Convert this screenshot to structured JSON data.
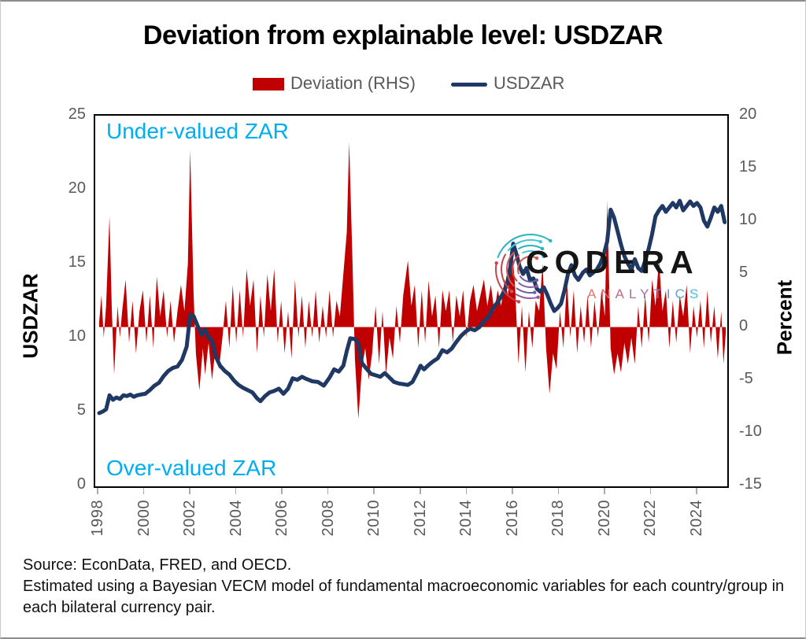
{
  "title": "Deviation from explainable level: USDZAR",
  "legend": [
    {
      "label": "Deviation (RHS)",
      "swatch": "bar",
      "color": "#C00000"
    },
    {
      "label": "USDZAR",
      "swatch": "line",
      "color": "#1F3864"
    }
  ],
  "annotations": {
    "top": "Under-valued ZAR",
    "bottom": "Over-valued ZAR",
    "color": "#00AEEF"
  },
  "logo": {
    "wordmark": "CODERA",
    "subtitle": "ANALYTICS",
    "subtitle_letter_colors": [
      "#E2726E",
      "#D76C77",
      "#C46A86",
      "#AF6C99",
      "#9771AE",
      "#7F7BBE",
      "#6B8FCB",
      "#5BA6D8",
      "#4FBCE3"
    ]
  },
  "footer": {
    "line1": "Source: EconData,  FRED, and OECD.",
    "line2": "Estimated using a Bayesian VECM model of fundamental macroeconomic variables for each country/group in",
    "line3": "each bilateral currency pair."
  },
  "chart_data": {
    "type": "line",
    "title": "Deviation from explainable level: USDZAR",
    "grid": false,
    "legend_position": "top",
    "x_axis": {
      "min": 1997.83,
      "max": 2025.23,
      "ticks": [
        1998,
        2000,
        2002,
        2004,
        2006,
        2008,
        2010,
        2012,
        2014,
        2016,
        2018,
        2020,
        2022,
        2024
      ]
    },
    "y_left": {
      "label": "USDZAR",
      "min": 0,
      "max": 25,
      "ticks": [
        25,
        20,
        15,
        10,
        5,
        0
      ]
    },
    "y_right": {
      "label": "Percent",
      "min": -15,
      "max": 20,
      "ticks": [
        20,
        15,
        10,
        5,
        0,
        -5,
        -10,
        -15
      ]
    },
    "series": [
      {
        "name": "Deviation (RHS)",
        "type": "area",
        "axis": "right",
        "color": "#C00000",
        "x": [
          1998.0,
          1998.1,
          1998.2,
          1998.3,
          1998.45,
          1998.55,
          1998.65,
          1998.8,
          1998.9,
          1999.0,
          1999.15,
          1999.3,
          1999.45,
          1999.6,
          1999.75,
          1999.9,
          2000.05,
          2000.2,
          2000.35,
          2000.5,
          2000.65,
          2000.8,
          2000.95,
          2001.1,
          2001.25,
          2001.4,
          2001.55,
          2001.7,
          2001.85,
          2001.95,
          2002.1,
          2002.2,
          2002.35,
          2002.5,
          2002.6,
          2002.75,
          2002.9,
          2003.05,
          2003.2,
          2003.35,
          2003.5,
          2003.65,
          2003.8,
          2003.95,
          2004.1,
          2004.25,
          2004.4,
          2004.55,
          2004.7,
          2004.85,
          2005.0,
          2005.15,
          2005.3,
          2005.45,
          2005.6,
          2005.75,
          2005.9,
          2006.05,
          2006.2,
          2006.35,
          2006.5,
          2006.65,
          2006.8,
          2006.95,
          2007.1,
          2007.25,
          2007.4,
          2007.55,
          2007.7,
          2007.85,
          2008.0,
          2008.15,
          2008.3,
          2008.45,
          2008.6,
          2008.75,
          2008.85,
          2009.0,
          2009.1,
          2009.25,
          2009.4,
          2009.55,
          2009.7,
          2009.85,
          2010.0,
          2010.15,
          2010.3,
          2010.45,
          2010.6,
          2010.75,
          2010.9,
          2011.05,
          2011.2,
          2011.4,
          2011.55,
          2011.7,
          2011.85,
          2012.0,
          2012.15,
          2012.3,
          2012.45,
          2012.6,
          2012.75,
          2012.9,
          2013.05,
          2013.2,
          2013.35,
          2013.5,
          2013.65,
          2013.8,
          2013.95,
          2014.1,
          2014.25,
          2014.4,
          2014.55,
          2014.7,
          2014.85,
          2015.0,
          2015.15,
          2015.3,
          2015.45,
          2015.6,
          2015.75,
          2015.9,
          2016.05,
          2016.2,
          2016.35,
          2016.5,
          2016.65,
          2016.8,
          2016.95,
          2017.1,
          2017.25,
          2017.4,
          2017.55,
          2017.7,
          2017.85,
          2018.0,
          2018.15,
          2018.3,
          2018.45,
          2018.6,
          2018.75,
          2018.9,
          2019.05,
          2019.2,
          2019.35,
          2019.5,
          2019.65,
          2019.8,
          2019.95,
          2020.05,
          2020.2,
          2020.35,
          2020.5,
          2020.65,
          2020.8,
          2020.95,
          2021.1,
          2021.25,
          2021.4,
          2021.55,
          2021.7,
          2021.85,
          2022.0,
          2022.15,
          2022.3,
          2022.45,
          2022.6,
          2022.75,
          2022.9,
          2023.05,
          2023.2,
          2023.35,
          2023.5,
          2023.65,
          2023.8,
          2023.95,
          2024.1,
          2024.25,
          2024.4,
          2024.55,
          2024.7,
          2024.85,
          2025.0,
          2025.1,
          2025.2
        ],
        "values": [
          0.5,
          3.0,
          -1.0,
          2.0,
          10.5,
          1.5,
          -4.5,
          2.0,
          -1.0,
          1.5,
          4.5,
          -1.5,
          2.5,
          -2.5,
          1.5,
          3.5,
          -1.5,
          3.0,
          -2.0,
          4.8,
          1.0,
          3.5,
          -1.0,
          2.5,
          -1.5,
          1.5,
          4.0,
          1.5,
          6.0,
          16.8,
          3.0,
          -2.5,
          -6.0,
          -2.0,
          -4.5,
          -1.5,
          -5.0,
          -2.0,
          -4.0,
          -1.0,
          2.5,
          -2.0,
          4.0,
          -1.5,
          3.5,
          -1.0,
          5.5,
          2.0,
          4.5,
          -2.5,
          3.0,
          -1.0,
          5.0,
          1.5,
          5.5,
          -1.5,
          2.5,
          -2.5,
          1.5,
          -3.0,
          4.5,
          -1.0,
          3.0,
          -2.0,
          2.5,
          -1.0,
          3.5,
          -1.5,
          2.0,
          -1.0,
          3.5,
          -1.0,
          2.5,
          1.0,
          5.0,
          9.0,
          17.5,
          6.0,
          -3.0,
          -8.7,
          -4.0,
          -2.0,
          -5.0,
          -2.5,
          2.0,
          -3.5,
          1.5,
          -4.5,
          -1.0,
          -3.0,
          2.0,
          -1.5,
          3.0,
          6.3,
          2.0,
          4.0,
          -2.0,
          3.5,
          -1.5,
          4.4,
          1.0,
          3.0,
          -2.0,
          3.5,
          1.5,
          3.5,
          -1.5,
          3.0,
          1.0,
          3.5,
          -1.0,
          2.5,
          4.0,
          1.5,
          3.0,
          4.5,
          2.0,
          4.0,
          1.5,
          3.5,
          2.0,
          4.5,
          3.0,
          8.0,
          4.0,
          -3.5,
          2.0,
          -4.3,
          1.5,
          -2.0,
          2.5,
          1.5,
          6.0,
          -2.0,
          -6.3,
          -2.5,
          -4.0,
          1.5,
          -2.0,
          4.5,
          -1.0,
          3.5,
          -2.5,
          2.0,
          -1.5,
          3.0,
          -2.0,
          2.5,
          -1.0,
          3.5,
          1.0,
          12.0,
          -2.0,
          -4.5,
          -2.5,
          -4.3,
          -1.5,
          -3.5,
          -1.0,
          -3.5,
          2.0,
          -2.0,
          3.0,
          -1.5,
          4.5,
          2.0,
          6.4,
          1.5,
          3.5,
          -2.0,
          2.5,
          -1.5,
          3.0,
          1.0,
          4.0,
          -2.5,
          2.0,
          -1.0,
          2.5,
          -2.0,
          3.5,
          -1.5,
          2.0,
          -3.0,
          1.5,
          -3.5,
          -0.5
        ]
      },
      {
        "name": "USDZAR",
        "type": "line",
        "axis": "left",
        "color": "#1F3864",
        "x": [
          1998.0,
          1998.15,
          1998.3,
          1998.45,
          1998.6,
          1998.75,
          1998.9,
          1999.05,
          1999.2,
          1999.35,
          1999.5,
          1999.65,
          1999.8,
          2000.0,
          2000.2,
          2000.4,
          2000.6,
          2000.8,
          2001.0,
          2001.2,
          2001.4,
          2001.6,
          2001.8,
          2001.95,
          2002.1,
          2002.3,
          2002.45,
          2002.6,
          2002.75,
          2002.9,
          2003.05,
          2003.25,
          2003.45,
          2003.65,
          2003.85,
          2004.05,
          2004.25,
          2004.45,
          2004.65,
          2004.85,
          2005.0,
          2005.2,
          2005.4,
          2005.6,
          2005.8,
          2006.0,
          2006.2,
          2006.4,
          2006.6,
          2006.8,
          2007.0,
          2007.25,
          2007.5,
          2007.75,
          2008.0,
          2008.2,
          2008.4,
          2008.6,
          2008.75,
          2008.9,
          2009.1,
          2009.25,
          2009.4,
          2009.6,
          2009.8,
          2010.0,
          2010.2,
          2010.4,
          2010.6,
          2010.8,
          2011.0,
          2011.2,
          2011.4,
          2011.6,
          2011.8,
          2011.95,
          2012.1,
          2012.3,
          2012.5,
          2012.7,
          2012.9,
          2013.1,
          2013.3,
          2013.5,
          2013.7,
          2013.9,
          2014.1,
          2014.3,
          2014.5,
          2014.7,
          2014.9,
          2015.1,
          2015.3,
          2015.5,
          2015.7,
          2015.85,
          2015.97,
          2016.1,
          2016.25,
          2016.4,
          2016.55,
          2016.7,
          2016.85,
          2017.0,
          2017.15,
          2017.3,
          2017.45,
          2017.6,
          2017.75,
          2017.9,
          2018.05,
          2018.2,
          2018.35,
          2018.5,
          2018.65,
          2018.8,
          2019.0,
          2019.15,
          2019.3,
          2019.45,
          2019.6,
          2019.75,
          2019.9,
          2020.05,
          2020.2,
          2020.35,
          2020.5,
          2020.65,
          2020.8,
          2020.95,
          2021.1,
          2021.25,
          2021.4,
          2021.55,
          2021.7,
          2021.85,
          2022.0,
          2022.15,
          2022.3,
          2022.45,
          2022.6,
          2022.75,
          2022.9,
          2023.05,
          2023.2,
          2023.35,
          2023.5,
          2023.65,
          2023.8,
          2023.95,
          2024.1,
          2024.25,
          2024.4,
          2024.55,
          2024.7,
          2024.85,
          2025.0,
          2025.15
        ],
        "values": [
          4.9,
          5.0,
          5.15,
          6.1,
          5.8,
          5.95,
          5.85,
          6.1,
          6.05,
          6.15,
          6.0,
          6.1,
          6.15,
          6.2,
          6.45,
          6.75,
          6.95,
          7.4,
          7.75,
          7.95,
          8.05,
          8.5,
          9.4,
          11.55,
          11.45,
          10.7,
          10.2,
          10.55,
          10.0,
          9.8,
          8.75,
          8.1,
          7.75,
          7.5,
          7.1,
          6.8,
          6.6,
          6.45,
          6.3,
          5.9,
          5.7,
          6.05,
          6.3,
          6.4,
          6.55,
          6.2,
          6.55,
          7.25,
          7.15,
          7.35,
          7.2,
          7.05,
          7.0,
          6.75,
          7.3,
          7.85,
          7.7,
          8.1,
          9.1,
          9.95,
          9.9,
          9.6,
          8.3,
          7.9,
          7.55,
          7.45,
          7.35,
          7.6,
          7.3,
          7.0,
          6.9,
          6.85,
          6.8,
          7.0,
          7.6,
          8.1,
          7.85,
          8.15,
          8.4,
          8.6,
          9.15,
          9.0,
          9.25,
          9.7,
          10.1,
          10.4,
          10.6,
          10.5,
          10.7,
          11.1,
          11.4,
          12.0,
          12.4,
          12.9,
          13.6,
          14.8,
          16.35,
          15.7,
          14.8,
          14.3,
          14.7,
          13.9,
          14.0,
          13.3,
          13.1,
          13.4,
          12.9,
          12.3,
          11.8,
          12.0,
          12.3,
          13.2,
          14.3,
          14.9,
          14.2,
          13.9,
          14.4,
          14.6,
          14.2,
          14.4,
          14.6,
          15.0,
          15.6,
          16.5,
          18.65,
          18.1,
          17.2,
          16.3,
          15.5,
          15.0,
          14.6,
          15.3,
          14.7,
          14.5,
          15.2,
          16.0,
          17.0,
          18.2,
          18.6,
          18.9,
          18.5,
          18.8,
          19.1,
          18.8,
          19.25,
          18.6,
          18.9,
          19.2,
          18.9,
          19.1,
          18.8,
          17.9,
          17.5,
          18.1,
          18.8,
          18.5,
          18.9,
          17.8
        ]
      }
    ],
    "annotations": [
      {
        "text": "Under-valued ZAR",
        "position": "top-left"
      },
      {
        "text": "Over-valued ZAR",
        "position": "bottom-left"
      }
    ]
  }
}
